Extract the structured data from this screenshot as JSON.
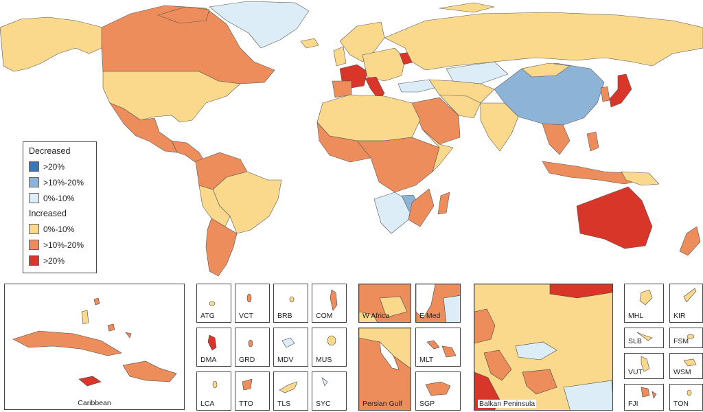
{
  "colors": {
    "dec_gt20": "#3a75b8",
    "dec_10_20": "#8db4d6",
    "dec_0_10": "#dcedf8",
    "inc_0_10": "#fad98c",
    "inc_10_20": "#ee8d5c",
    "inc_gt20": "#d9362a",
    "border": "#333333"
  },
  "legend": {
    "decreased_title": "Decreased",
    "increased_title": "Increased",
    "decreased": [
      {
        "label": ">20%",
        "color": "#3a75b8"
      },
      {
        "label": ">10%-20%",
        "color": "#8db4d6"
      },
      {
        "label": "0%-10%",
        "color": "#dcedf8"
      }
    ],
    "increased": [
      {
        "label": "0%-10%",
        "color": "#fad98c"
      },
      {
        "label": ">10%-20%",
        "color": "#ee8d5c"
      },
      {
        "label": ">20%",
        "color": "#d9362a"
      }
    ]
  },
  "insets": {
    "caribbean": "Caribbean",
    "atg": "ATG",
    "vct": "VCT",
    "brb": "BRB",
    "com": "COM",
    "dma": "DMA",
    "grd": "GRD",
    "mdv": "MDV",
    "mus": "MUS",
    "lca": "LCA",
    "tto": "TTO",
    "tls": "TLS",
    "syc": "SYC",
    "w_africa": "W Africa",
    "e_med": "E Med",
    "persian_gulf": "Persian Gulf",
    "mlt": "MLT",
    "sgp": "SGP",
    "balkan": "Balkan Peninsula",
    "mhl": "MHL",
    "kir": "KIR",
    "slb": "SLB",
    "fsm": "FSM",
    "vut": "VUT",
    "wsm": "WSM",
    "fji": "FJI",
    "ton": "TON"
  }
}
